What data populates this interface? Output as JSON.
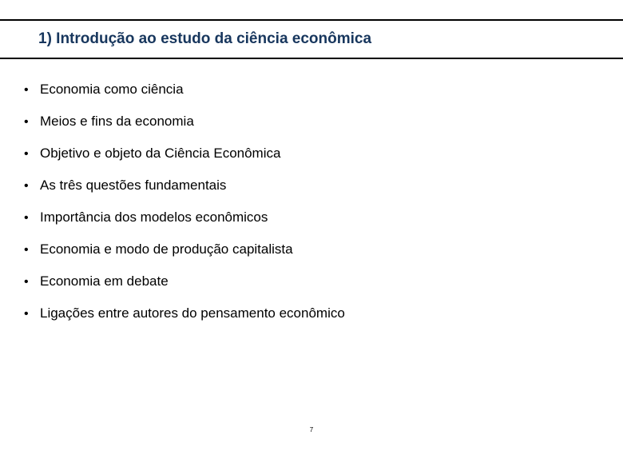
{
  "title": "1) Introdução ao estudo da ciência econômica",
  "title_color": "#17365d",
  "title_fontsize": 19,
  "rule_color": "#000000",
  "background_color": "#ffffff",
  "bullet_char": "•",
  "item_fontsize": 17,
  "item_color": "#000000",
  "items": [
    "Economia como ciência",
    "Meios e fins da economia",
    "Objetivo e objeto da Ciência Econômica",
    "As três questões fundamentais",
    "Importância dos modelos econômicos",
    "Economia e modo de produção capitalista",
    "Economia em debate",
    "Ligações entre autores do pensamento econômico"
  ],
  "page_number": "7"
}
